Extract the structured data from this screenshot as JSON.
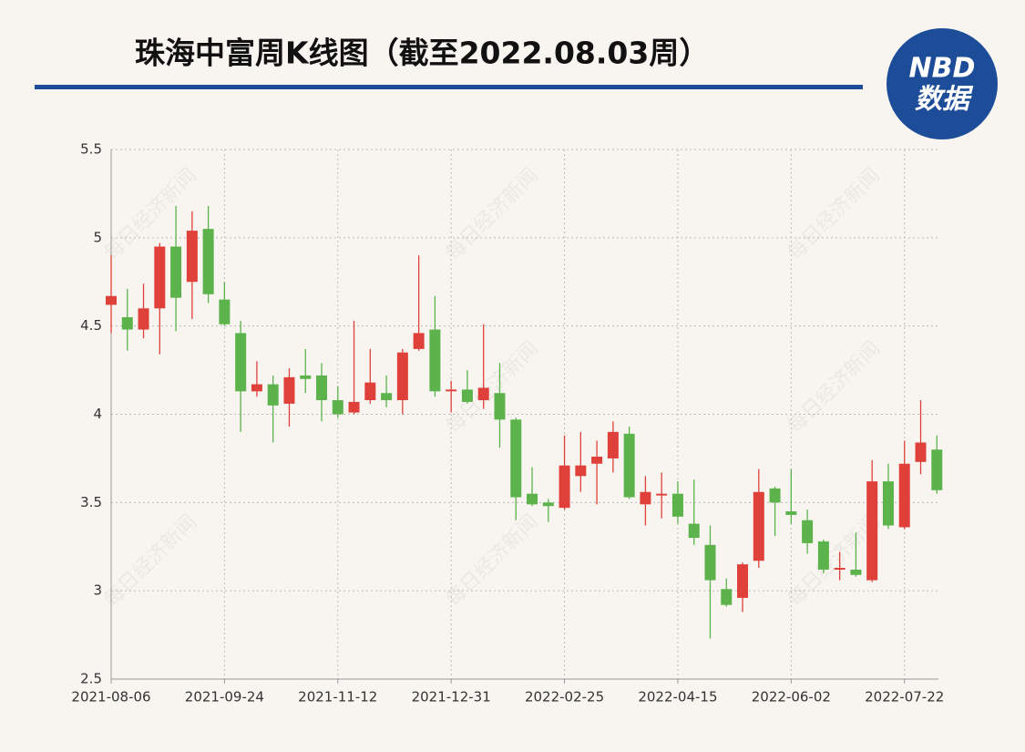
{
  "chart_data": {
    "type": "candlestick",
    "title": "珠海中富周K线图（截至2022.08.03周）",
    "logo": {
      "line1": "NBD",
      "line2": "数据"
    },
    "watermark": "每日经济新闻",
    "categories": [
      "2021-08-06",
      null,
      null,
      null,
      null,
      null,
      null,
      "2021-09-24",
      null,
      null,
      null,
      null,
      null,
      null,
      "2021-11-12",
      null,
      null,
      null,
      null,
      null,
      null,
      "2021-12-31",
      null,
      null,
      null,
      null,
      null,
      null,
      "2022-02-25",
      null,
      null,
      null,
      null,
      null,
      null,
      "2022-04-15",
      null,
      null,
      null,
      null,
      null,
      null,
      "2022-06-02",
      null,
      null,
      null,
      null,
      null,
      null,
      "2022-07-22",
      null,
      null
    ],
    "open": [
      4.62,
      4.55,
      4.48,
      4.6,
      4.95,
      4.75,
      5.05,
      4.65,
      4.46,
      4.13,
      4.17,
      4.06,
      4.22,
      4.22,
      4.08,
      4.01,
      4.08,
      4.12,
      4.08,
      4.37,
      4.48,
      4.13,
      4.14,
      4.08,
      4.12,
      3.97,
      3.55,
      3.5,
      3.47,
      3.65,
      3.72,
      3.75,
      3.89,
      3.49,
      3.54,
      3.55,
      3.38,
      3.26,
      3.01,
      2.96,
      3.17,
      3.58,
      3.45,
      3.4,
      3.28,
      3.12,
      3.12,
      3.06,
      3.62,
      3.36,
      3.73,
      3.8
    ],
    "high": [
      4.9,
      4.71,
      4.74,
      4.97,
      5.18,
      5.15,
      5.18,
      4.75,
      4.53,
      4.3,
      4.22,
      4.26,
      4.37,
      4.29,
      4.16,
      4.53,
      4.37,
      4.22,
      4.37,
      4.9,
      4.67,
      4.19,
      4.25,
      4.51,
      4.29,
      3.98,
      3.7,
      3.52,
      3.88,
      3.9,
      3.85,
      3.96,
      3.93,
      3.65,
      3.67,
      3.62,
      3.63,
      3.37,
      3.07,
      3.16,
      3.69,
      3.59,
      3.69,
      3.46,
      3.29,
      3.22,
      3.33,
      3.74,
      3.72,
      3.85,
      4.08,
      3.88
    ],
    "low": [
      4.46,
      4.36,
      4.43,
      4.34,
      4.47,
      4.54,
      4.63,
      4.5,
      3.9,
      4.1,
      3.84,
      3.93,
      4.12,
      3.96,
      3.98,
      4.0,
      4.06,
      4.04,
      4.0,
      4.36,
      4.1,
      4.01,
      4.06,
      4.03,
      3.81,
      3.4,
      3.48,
      3.39,
      3.46,
      3.56,
      3.49,
      3.67,
      3.52,
      3.37,
      3.41,
      3.38,
      3.26,
      2.73,
      2.91,
      2.88,
      3.13,
      3.31,
      3.38,
      3.21,
      3.1,
      3.06,
      3.08,
      3.05,
      3.35,
      3.35,
      3.66,
      3.55
    ],
    "close": [
      4.67,
      4.48,
      4.6,
      4.95,
      4.66,
      5.04,
      4.68,
      4.51,
      4.13,
      4.17,
      4.05,
      4.21,
      4.2,
      4.08,
      4.0,
      4.07,
      4.18,
      4.08,
      4.35,
      4.46,
      4.13,
      4.14,
      4.07,
      4.15,
      3.97,
      3.53,
      3.49,
      3.48,
      3.71,
      3.71,
      3.76,
      3.9,
      3.53,
      3.56,
      3.55,
      3.42,
      3.3,
      3.06,
      2.92,
      3.15,
      3.56,
      3.5,
      3.43,
      3.27,
      3.12,
      3.13,
      3.09,
      3.62,
      3.37,
      3.72,
      3.84,
      3.57
    ],
    "up_color": "#e0403a",
    "down_color": "#5cb34c",
    "ylim": [
      2.5,
      5.5
    ],
    "yticks": [
      2.5,
      3,
      3.5,
      4,
      4.5,
      5,
      5.5
    ],
    "grid": true
  }
}
